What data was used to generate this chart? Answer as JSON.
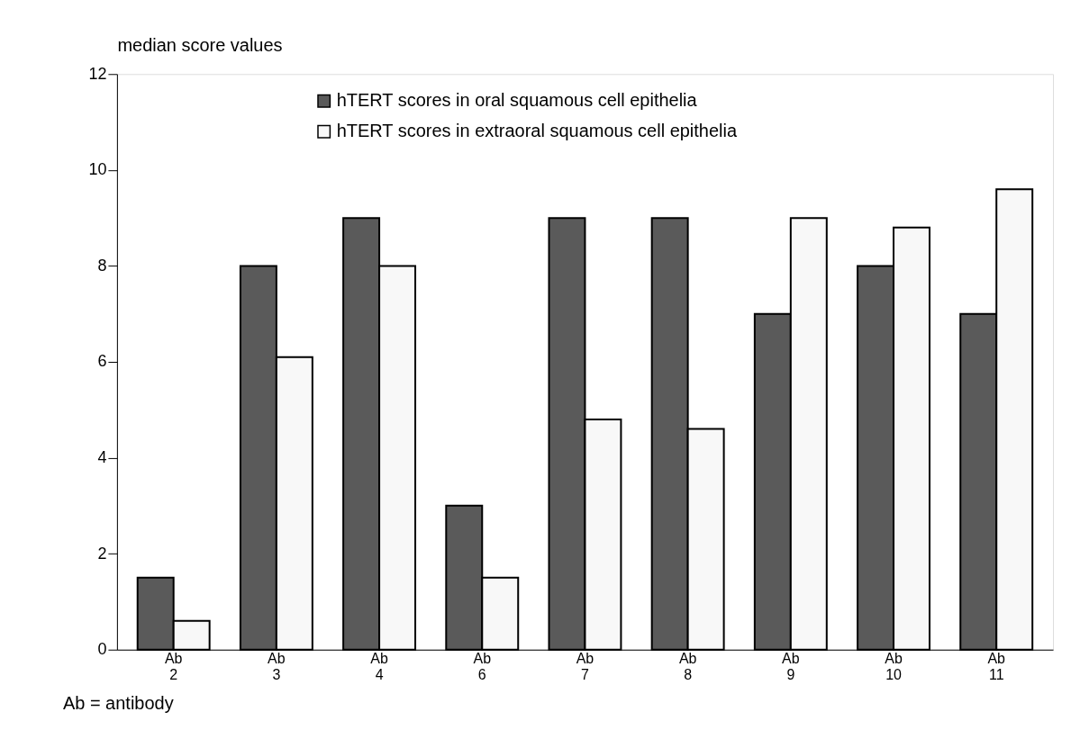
{
  "chart_data": {
    "type": "bar",
    "ylabel": "median score values",
    "categories": [
      "Ab 2",
      "Ab 3",
      "Ab 4",
      "Ab 6",
      "Ab 7",
      "Ab 8",
      "Ab 9",
      "Ab 10",
      "Ab 11"
    ],
    "series": [
      {
        "name": "hTERT scores in oral squamous cell epithelia",
        "color": "#5a5a5a",
        "values": [
          1.5,
          8,
          9,
          3,
          9,
          9,
          7,
          8,
          7
        ]
      },
      {
        "name": "hTERT scores in extraoral squamous cell epithelia",
        "color": "#f8f8f8",
        "values": [
          0.6,
          6.1,
          8,
          1.5,
          4.8,
          4.6,
          9,
          8.8,
          9.6
        ]
      }
    ],
    "ylim": [
      0,
      12
    ],
    "yticks": [
      0,
      2,
      4,
      6,
      8,
      10,
      12
    ],
    "grid": false,
    "legend": "top",
    "annotations": [
      "Ab = antibody"
    ]
  }
}
